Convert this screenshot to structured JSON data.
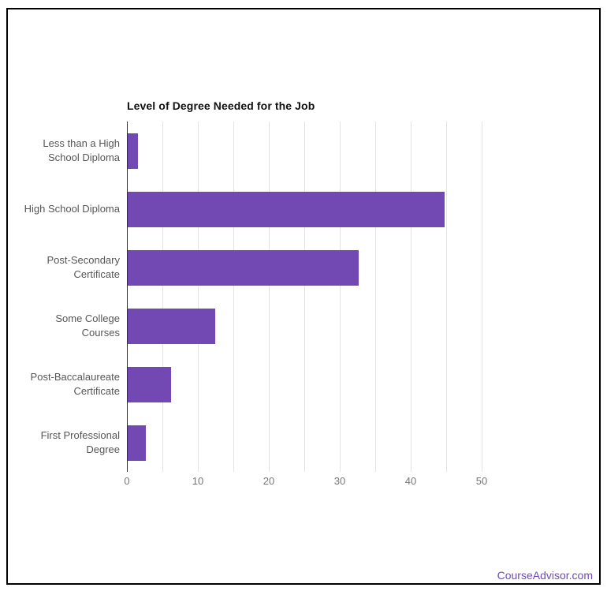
{
  "frame": {
    "border_color": "#000000",
    "background": "#ffffff"
  },
  "chart_data": {
    "type": "bar",
    "orientation": "horizontal",
    "title": "Level of Degree Needed for the Job",
    "categories": [
      "Less than a High School Diploma",
      "High School Diploma",
      "Post-Secondary Certificate",
      "Some College Courses",
      "Post-Baccalaureate Certificate",
      "First Professional Degree"
    ],
    "values": [
      1.4,
      44.7,
      32.5,
      12.3,
      6.1,
      2.5
    ],
    "xlabel": "",
    "ylabel": "",
    "xlim": [
      0,
      55
    ],
    "x_ticks": [
      0,
      10,
      20,
      30,
      40,
      50
    ],
    "gridline_interval": 5,
    "grid": true,
    "legend": "none",
    "bar_color": "#7248b2",
    "gridline_color": "#e3e3e3",
    "axis_color": "#333333",
    "tick_label_color": "#757575",
    "category_label_color": "#565656",
    "title_color": "#111111"
  },
  "watermark": {
    "text": "CourseAdvisor.com",
    "color": "#6f4ab8"
  }
}
